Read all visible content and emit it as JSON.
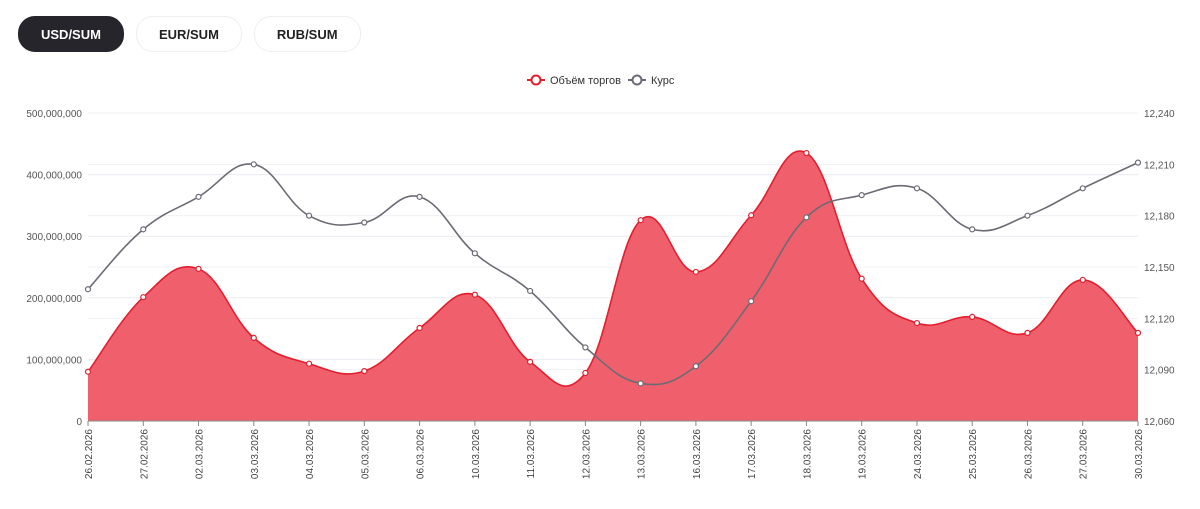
{
  "tabs": [
    {
      "label": "USD/SUM",
      "active": true
    },
    {
      "label": "EUR/SUM",
      "active": false
    },
    {
      "label": "RUB/SUM",
      "active": false
    }
  ],
  "chart_data": {
    "type": "line",
    "categories": [
      "26.02.2026",
      "27.02.2026",
      "02.03.2026",
      "03.03.2026",
      "04.03.2026",
      "05.03.2026",
      "06.03.2026",
      "10.03.2026",
      "11.03.2026",
      "12.03.2026",
      "13.03.2026",
      "16.03.2026",
      "17.03.2026",
      "18.03.2026",
      "19.03.2026",
      "24.03.2026",
      "25.03.2026",
      "26.03.2026",
      "27.03.2026",
      "30.03.2026"
    ],
    "series": [
      {
        "name": "Объём торгов",
        "axis": "left",
        "kind": "area",
        "color": "#e31e2d",
        "fill": "#f0606c",
        "values": [
          80000000,
          201000000,
          247000000,
          135000000,
          93000000,
          81000000,
          151000000,
          205000000,
          96000000,
          78000000,
          326000000,
          242000000,
          334000000,
          435000000,
          231000000,
          159000000,
          169000000,
          143000000,
          229000000,
          143000000
        ]
      },
      {
        "name": "Курс",
        "axis": "right",
        "kind": "line",
        "color": "#6b6b75",
        "values": [
          12137,
          12172,
          12191,
          12210,
          12180,
          12176,
          12191,
          12158,
          12136,
          12103,
          12082,
          12092,
          12130,
          12179,
          12192,
          12196,
          12172,
          12180,
          12196,
          12211
        ]
      }
    ],
    "left_axis": {
      "range": [
        0,
        500000000
      ],
      "ticks": [
        "0",
        "100,000,000",
        "200,000,000",
        "300,000,000",
        "400,000,000",
        "500,000,000"
      ]
    },
    "right_axis": {
      "range": [
        12060,
        12240
      ],
      "ticks": [
        "12,060",
        "12,090",
        "12,120",
        "12,150",
        "12,180",
        "12,210",
        "12,240"
      ]
    },
    "legend_position": "top-center",
    "grid": true
  }
}
